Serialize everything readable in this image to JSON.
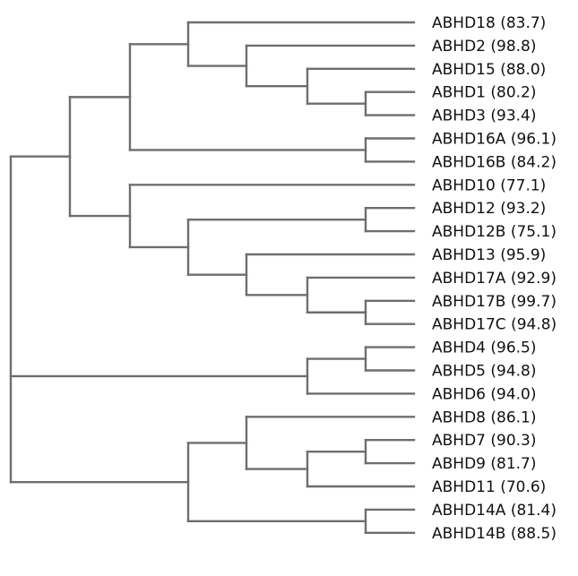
{
  "dendrogram": {
    "line_color": "#6e6e6e",
    "text_color": "#111111",
    "leaves": [
      {
        "name": "ABHD18",
        "value": "83.7"
      },
      {
        "name": "ABHD2",
        "value": "98.8"
      },
      {
        "name": "ABHD15",
        "value": "88.0"
      },
      {
        "name": "ABHD1",
        "value": "80.2"
      },
      {
        "name": "ABHD3",
        "value": "93.4"
      },
      {
        "name": "ABHD16A",
        "value": "96.1"
      },
      {
        "name": "ABHD16B",
        "value": "84.2"
      },
      {
        "name": "ABHD10",
        "value": "77.1"
      },
      {
        "name": "ABHD12",
        "value": "93.2"
      },
      {
        "name": "ABHD12B",
        "value": "75.1"
      },
      {
        "name": "ABHD13",
        "value": "95.9"
      },
      {
        "name": "ABHD17A",
        "value": "92.9"
      },
      {
        "name": "ABHD17B",
        "value": "99.7"
      },
      {
        "name": "ABHD17C",
        "value": "94.8"
      },
      {
        "name": "ABHD4",
        "value": "96.5"
      },
      {
        "name": "ABHD5",
        "value": "94.8"
      },
      {
        "name": "ABHD6",
        "value": "94.0"
      },
      {
        "name": "ABHD8",
        "value": "86.1"
      },
      {
        "name": "ABHD7",
        "value": "90.3"
      },
      {
        "name": "ABHD9",
        "value": "81.7"
      },
      {
        "name": "ABHD11",
        "value": "70.6"
      },
      {
        "name": "ABHD14A",
        "value": "81.4"
      },
      {
        "name": "ABHD14B",
        "value": "88.5"
      }
    ]
  }
}
